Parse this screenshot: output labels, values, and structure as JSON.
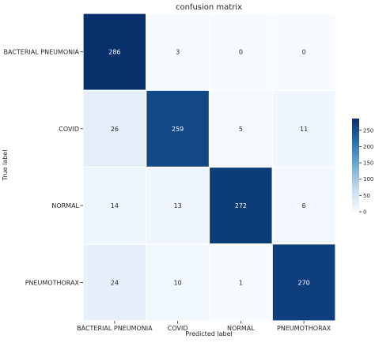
{
  "chart_data": {
    "type": "heatmap",
    "title": "confusion matrix",
    "xlabel": "Predicted label",
    "ylabel": "True label",
    "x_categories": [
      "BACTERIAL PNEUMONIA",
      "COVID",
      "NORMAL",
      "PNEUMOTHORAX"
    ],
    "y_categories": [
      "BACTERIAL PNEUMONIA",
      "COVID",
      "NORMAL",
      "PNEUMOTHORAX"
    ],
    "values": [
      [
        286,
        3,
        0,
        0
      ],
      [
        26,
        259,
        5,
        11
      ],
      [
        14,
        13,
        272,
        6
      ],
      [
        24,
        10,
        1,
        270
      ]
    ],
    "colormap": "Blues",
    "color_range": [
      0,
      286
    ],
    "colorbar_ticks": [
      0,
      50,
      100,
      150,
      200,
      250
    ],
    "colors": {
      "low": "#f7fbff",
      "mid_low": "#c6dbef",
      "mid": "#6baed6",
      "mid_high": "#2171b5",
      "high": "#08306b",
      "text_dark": "#262626",
      "text_light": "#ffffff",
      "cell_border": "#ffffff"
    }
  }
}
